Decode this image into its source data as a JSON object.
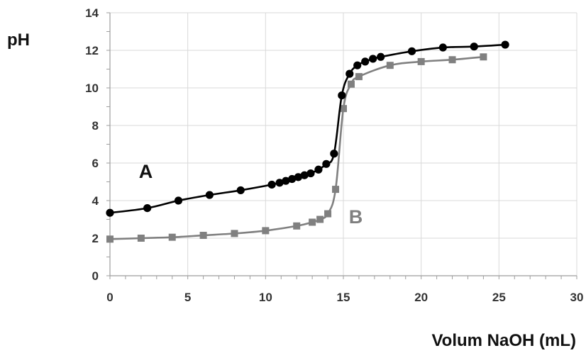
{
  "chart_data": {
    "type": "line",
    "xlabel": "Volum NaOH (mL)",
    "ylabel": "pH",
    "xlim": [
      0,
      30
    ],
    "ylim": [
      0,
      14
    ],
    "x_ticks": [
      0,
      5,
      10,
      15,
      20,
      25,
      30
    ],
    "y_ticks": [
      0,
      2,
      4,
      6,
      8,
      10,
      12,
      14
    ],
    "grid": true,
    "series": [
      {
        "name": "A",
        "color": "#000000",
        "marker": "circle",
        "x": [
          0,
          2.4,
          4.4,
          6.4,
          8.4,
          10.4,
          10.9,
          11.3,
          11.7,
          12.1,
          12.5,
          12.9,
          13.4,
          13.9,
          14.4,
          14.9,
          15.4,
          15.9,
          16.4,
          16.9,
          17.4,
          19.4,
          21.4,
          23.4,
          25.4
        ],
        "y": [
          3.35,
          3.6,
          4.0,
          4.3,
          4.55,
          4.85,
          4.95,
          5.05,
          5.15,
          5.25,
          5.35,
          5.45,
          5.65,
          5.95,
          6.5,
          9.6,
          10.75,
          11.2,
          11.4,
          11.55,
          11.65,
          11.95,
          12.15,
          12.2,
          12.3
        ]
      },
      {
        "name": "B",
        "color": "#808080",
        "marker": "square",
        "x": [
          0,
          2,
          4,
          6,
          8,
          10,
          12,
          13,
          13.5,
          14,
          14.5,
          15,
          15.5,
          16,
          18,
          20,
          22,
          24
        ],
        "y": [
          1.95,
          2.0,
          2.05,
          2.15,
          2.25,
          2.4,
          2.65,
          2.85,
          3.0,
          3.3,
          4.6,
          8.9,
          10.2,
          10.6,
          11.2,
          11.4,
          11.5,
          11.65
        ]
      }
    ],
    "annotations": [
      {
        "text": "A",
        "x": 2.3,
        "y": 5.2
      },
      {
        "text": "B",
        "x": 15.8,
        "y": 2.8
      }
    ]
  }
}
